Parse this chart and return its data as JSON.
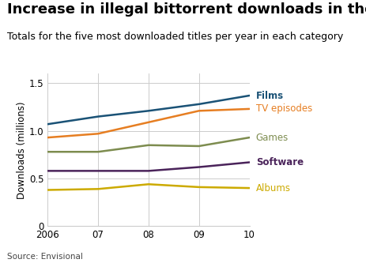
{
  "title": "Increase in illegal bittorrent downloads in the UK",
  "subtitle": "Totals for the five most downloaded titles per year in each category",
  "ylabel": "Downloads (millions)",
  "source": "Source: Envisional",
  "x": [
    2006,
    2007,
    2008,
    2009,
    2010
  ],
  "xtick_labels": [
    "2006",
    "07",
    "08",
    "09",
    "10"
  ],
  "series": {
    "Films": {
      "data": [
        1.07,
        1.15,
        1.21,
        1.28,
        1.37
      ],
      "color": "#1a5276",
      "bold": true
    },
    "TV episodes": {
      "data": [
        0.93,
        0.97,
        1.09,
        1.21,
        1.23
      ],
      "color": "#e67e22",
      "bold": false
    },
    "Games": {
      "data": [
        0.78,
        0.78,
        0.85,
        0.84,
        0.93
      ],
      "color": "#7d8c4f",
      "bold": false
    },
    "Software": {
      "data": [
        0.58,
        0.58,
        0.58,
        0.62,
        0.67
      ],
      "color": "#4a235a",
      "bold": true
    },
    "Albums": {
      "data": [
        0.38,
        0.39,
        0.44,
        0.41,
        0.4
      ],
      "color": "#ccaa00",
      "bold": false
    }
  },
  "ylim": [
    0,
    1.6
  ],
  "yticks": [
    0,
    0.5,
    1.0,
    1.5
  ],
  "background_color": "#ffffff",
  "grid_color": "#cccccc",
  "title_fontsize": 13,
  "subtitle_fontsize": 9,
  "ylabel_fontsize": 8.5,
  "tick_fontsize": 8.5,
  "line_width": 1.8,
  "label_fontsize": 8.5
}
